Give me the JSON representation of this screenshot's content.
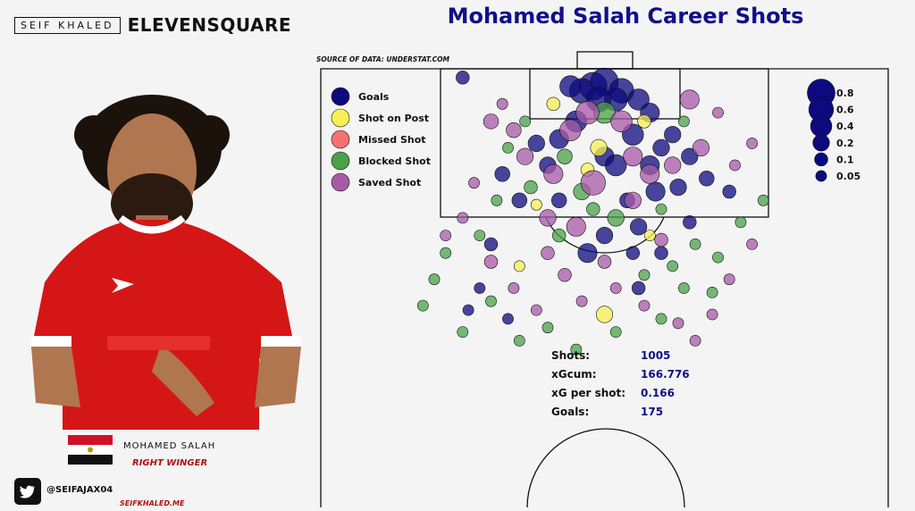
{
  "branding": {
    "author_box": "SEIF KHALED",
    "brand": "ELEVENSQUARE"
  },
  "player": {
    "name": "MOHAMED SALAH",
    "role": "RIGHT WINGER"
  },
  "social": {
    "handle": "@SEIFAJAX04",
    "website": "SEIFKHALED.ME"
  },
  "stats": [
    {
      "label": "Shots:",
      "value": "1005"
    },
    {
      "label": "xGcum:",
      "value": "166.776"
    },
    {
      "label": "xG per shot:",
      "value": "0.166"
    },
    {
      "label": "Goals:",
      "value": "175"
    }
  ],
  "chart_data": {
    "type": "scatter",
    "title": "Mohamed Salah Career Shots",
    "source": "SOURCE OF DATA: UNDERSTAT.COM",
    "colors": {
      "Goals": "#0c0a7e",
      "Shot on Post": "#f7f055",
      "Missed Shot": "#f57272",
      "Blocked Shot": "#4aa24a",
      "Saved Shot": "#a85aa8"
    },
    "legend": [
      "Goals",
      "Shot on Post",
      "Missed Shot",
      "Blocked Shot",
      "Saved Shot"
    ],
    "legend_position": "top-left",
    "size_legend": {
      "values": [
        0.8,
        0.6,
        0.4,
        0.2,
        0.1,
        0.05
      ],
      "labels": [
        "0.8",
        "0.6",
        "0.4",
        "0.2",
        "0.1",
        "0.05"
      ],
      "position": "top-right"
    },
    "grid": false,
    "series": [
      {
        "name": "Goals",
        "points": [
          [
            0.48,
            0.96,
            0.8
          ],
          [
            0.5,
            0.97,
            0.8
          ],
          [
            0.46,
            0.95,
            0.6
          ],
          [
            0.53,
            0.95,
            0.6
          ],
          [
            0.52,
            0.93,
            0.5
          ],
          [
            0.44,
            0.96,
            0.4
          ],
          [
            0.56,
            0.93,
            0.4
          ],
          [
            0.49,
            0.93,
            0.6
          ],
          [
            0.58,
            0.9,
            0.3
          ],
          [
            0.55,
            0.85,
            0.4
          ],
          [
            0.45,
            0.88,
            0.4
          ],
          [
            0.42,
            0.84,
            0.3
          ],
          [
            0.38,
            0.83,
            0.2
          ],
          [
            0.6,
            0.82,
            0.2
          ],
          [
            0.65,
            0.8,
            0.2
          ],
          [
            0.4,
            0.78,
            0.2
          ],
          [
            0.5,
            0.8,
            0.3
          ],
          [
            0.52,
            0.78,
            0.4
          ],
          [
            0.59,
            0.72,
            0.3
          ],
          [
            0.63,
            0.73,
            0.2
          ],
          [
            0.32,
            0.76,
            0.15
          ],
          [
            0.35,
            0.7,
            0.15
          ],
          [
            0.56,
            0.64,
            0.2
          ],
          [
            0.47,
            0.58,
            0.3
          ],
          [
            0.55,
            0.58,
            0.1
          ],
          [
            0.6,
            0.58,
            0.1
          ],
          [
            0.3,
            0.6,
            0.1
          ],
          [
            0.28,
            0.5,
            0.05
          ],
          [
            0.26,
            0.45,
            0.05
          ],
          [
            0.33,
            0.43,
            0.05
          ],
          [
            0.56,
            0.5,
            0.1
          ],
          [
            0.68,
            0.75,
            0.15
          ],
          [
            0.72,
            0.72,
            0.1
          ],
          [
            0.25,
            0.98,
            0.1
          ],
          [
            0.42,
            0.7,
            0.15
          ],
          [
            0.5,
            0.62,
            0.2
          ],
          [
            0.54,
            0.7,
            0.15
          ],
          [
            0.65,
            0.65,
            0.1
          ],
          [
            0.58,
            0.78,
            0.3
          ],
          [
            0.62,
            0.85,
            0.2
          ]
        ]
      },
      {
        "name": "Shot on Post",
        "points": [
          [
            0.41,
            0.92,
            0.1
          ],
          [
            0.47,
            0.77,
            0.1
          ],
          [
            0.49,
            0.82,
            0.2
          ],
          [
            0.38,
            0.69,
            0.05
          ],
          [
            0.5,
            0.44,
            0.2
          ],
          [
            0.35,
            0.55,
            0.05
          ],
          [
            0.58,
            0.62,
            0.05
          ],
          [
            0.57,
            0.88,
            0.1
          ]
        ]
      },
      {
        "name": "Missed Shot",
        "points": []
      },
      {
        "name": "Blocked Shot",
        "points": [
          [
            0.5,
            0.9,
            0.4
          ],
          [
            0.43,
            0.8,
            0.15
          ],
          [
            0.46,
            0.72,
            0.2
          ],
          [
            0.52,
            0.66,
            0.2
          ],
          [
            0.37,
            0.73,
            0.1
          ],
          [
            0.6,
            0.68,
            0.05
          ],
          [
            0.66,
            0.6,
            0.05
          ],
          [
            0.31,
            0.7,
            0.05
          ],
          [
            0.28,
            0.62,
            0.05
          ],
          [
            0.22,
            0.58,
            0.05
          ],
          [
            0.2,
            0.52,
            0.05
          ],
          [
            0.3,
            0.47,
            0.05
          ],
          [
            0.35,
            0.38,
            0.05
          ],
          [
            0.4,
            0.41,
            0.05
          ],
          [
            0.45,
            0.36,
            0.05
          ],
          [
            0.52,
            0.4,
            0.05
          ],
          [
            0.6,
            0.43,
            0.05
          ],
          [
            0.64,
            0.5,
            0.05
          ],
          [
            0.69,
            0.49,
            0.05
          ],
          [
            0.7,
            0.57,
            0.05
          ],
          [
            0.74,
            0.65,
            0.05
          ],
          [
            0.78,
            0.7,
            0.05
          ],
          [
            0.25,
            0.4,
            0.05
          ],
          [
            0.18,
            0.46,
            0.05
          ],
          [
            0.42,
            0.62,
            0.1
          ],
          [
            0.48,
            0.68,
            0.1
          ],
          [
            0.57,
            0.53,
            0.05
          ],
          [
            0.62,
            0.55,
            0.05
          ],
          [
            0.33,
            0.82,
            0.05
          ],
          [
            0.36,
            0.88,
            0.05
          ],
          [
            0.64,
            0.88,
            0.05
          ]
        ]
      },
      {
        "name": "Saved Shot",
        "points": [
          [
            0.47,
            0.9,
            0.5
          ],
          [
            0.53,
            0.88,
            0.4
          ],
          [
            0.44,
            0.86,
            0.4
          ],
          [
            0.55,
            0.8,
            0.3
          ],
          [
            0.48,
            0.74,
            0.6
          ],
          [
            0.41,
            0.76,
            0.3
          ],
          [
            0.58,
            0.76,
            0.3
          ],
          [
            0.36,
            0.8,
            0.2
          ],
          [
            0.34,
            0.86,
            0.15
          ],
          [
            0.62,
            0.78,
            0.2
          ],
          [
            0.67,
            0.82,
            0.2
          ],
          [
            0.65,
            0.93,
            0.3
          ],
          [
            0.4,
            0.66,
            0.2
          ],
          [
            0.45,
            0.64,
            0.3
          ],
          [
            0.55,
            0.7,
            0.2
          ],
          [
            0.27,
            0.74,
            0.05
          ],
          [
            0.25,
            0.66,
            0.05
          ],
          [
            0.22,
            0.62,
            0.05
          ],
          [
            0.3,
            0.56,
            0.1
          ],
          [
            0.34,
            0.5,
            0.05
          ],
          [
            0.38,
            0.45,
            0.05
          ],
          [
            0.43,
            0.53,
            0.1
          ],
          [
            0.46,
            0.47,
            0.05
          ],
          [
            0.52,
            0.5,
            0.05
          ],
          [
            0.57,
            0.46,
            0.05
          ],
          [
            0.63,
            0.42,
            0.05
          ],
          [
            0.66,
            0.38,
            0.05
          ],
          [
            0.69,
            0.44,
            0.05
          ],
          [
            0.72,
            0.52,
            0.05
          ],
          [
            0.76,
            0.6,
            0.05
          ],
          [
            0.73,
            0.78,
            0.05
          ],
          [
            0.76,
            0.83,
            0.05
          ],
          [
            0.7,
            0.9,
            0.05
          ],
          [
            0.32,
            0.92,
            0.05
          ],
          [
            0.3,
            0.88,
            0.15
          ],
          [
            0.6,
            0.61,
            0.1
          ],
          [
            0.5,
            0.56,
            0.1
          ],
          [
            0.4,
            0.58,
            0.1
          ]
        ]
      }
    ]
  }
}
